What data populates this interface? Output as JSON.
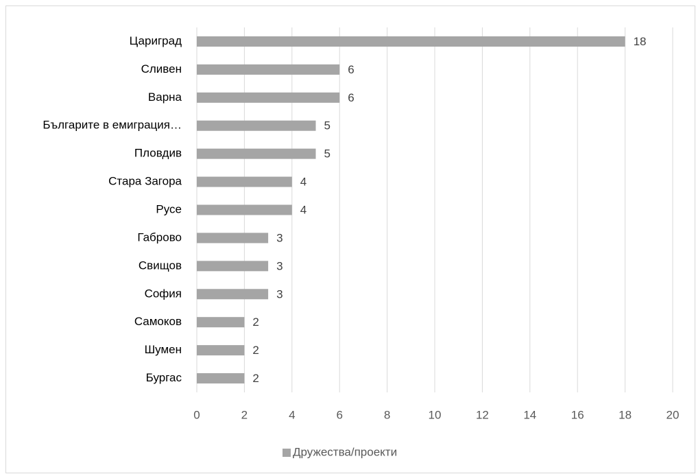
{
  "chart_data": {
    "type": "bar",
    "orientation": "horizontal",
    "categories": [
      "Цариград",
      "Сливен",
      "Варна",
      "Българите в емиграция…",
      "Пловдив",
      "Стара Загора",
      "Русе",
      "Габрово",
      "Свищов",
      "София",
      "Самоков",
      "Шумен",
      "Бургас"
    ],
    "series": [
      {
        "name": "Дружества/проекти",
        "color": "#a5a5a5",
        "values": [
          18,
          6,
          6,
          5,
          5,
          4,
          4,
          3,
          3,
          3,
          2,
          2,
          2
        ]
      }
    ],
    "xlim": [
      0,
      20
    ],
    "xticks": [
      0,
      2,
      4,
      6,
      8,
      10,
      12,
      14,
      16,
      18,
      20
    ],
    "grid": true,
    "data_labels": true,
    "legend": "bottom"
  }
}
